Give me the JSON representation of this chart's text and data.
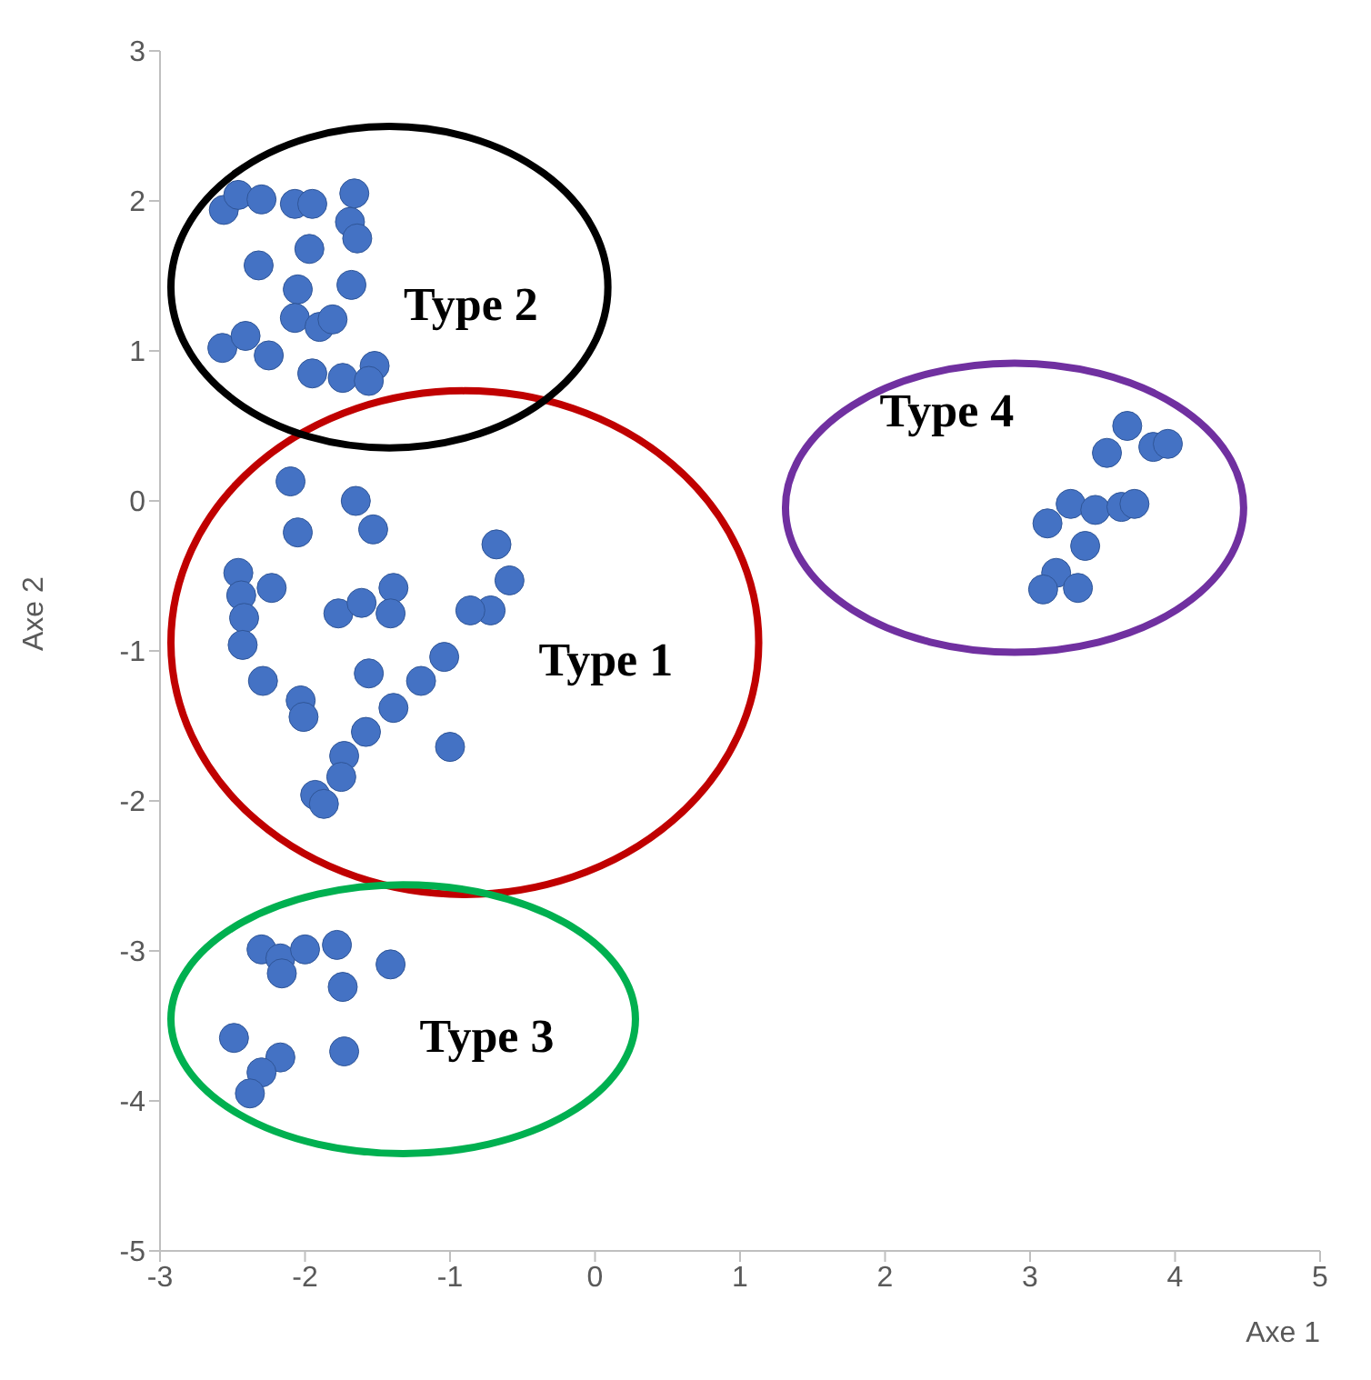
{
  "chart_data": {
    "type": "scatter",
    "xlabel": "Axe 1",
    "ylabel": "Axe 2",
    "xlim": [
      -3,
      5
    ],
    "xticks": [
      -3,
      -2,
      -1,
      0,
      1,
      2,
      3,
      4,
      5
    ],
    "ylim": [
      -5,
      3
    ],
    "yticks": [
      -5,
      -4,
      -3,
      -2,
      -1,
      0,
      1,
      2,
      3
    ],
    "grid": false,
    "legend": false,
    "marker": "circle",
    "series": [
      {
        "name": "Type 1",
        "color": "#4472c4",
        "x": [
          -2.1,
          -1.65,
          -1.53,
          -2.05,
          -0.68,
          -2.46,
          -2.23,
          -2.44,
          -2.42,
          -2.43,
          -1.77,
          -1.61,
          -1.39,
          -1.41,
          -0.59,
          -0.72,
          -0.86,
          -2.29,
          -2.03,
          -2.01,
          -1.56,
          -1.2,
          -1.04,
          -1.39,
          -1.58,
          -1.73,
          -1.75,
          -1.93,
          -1.87,
          -1.0
        ],
        "values": [
          0.13,
          0.0,
          -0.19,
          -0.21,
          -0.29,
          -0.48,
          -0.58,
          -0.63,
          -0.78,
          -0.96,
          -0.75,
          -0.68,
          -0.58,
          -0.75,
          -0.53,
          -0.73,
          -0.73,
          -1.2,
          -1.33,
          -1.44,
          -1.15,
          -1.2,
          -1.04,
          -1.38,
          -1.54,
          -1.7,
          -1.84,
          -1.96,
          -2.02,
          -1.64
        ]
      },
      {
        "name": "Type 2",
        "color": "#4472c4",
        "x": [
          -2.56,
          -2.46,
          -2.3,
          -2.07,
          -1.95,
          -1.66,
          -1.69,
          -1.64,
          -2.32,
          -1.97,
          -2.05,
          -1.68,
          -2.07,
          -1.9,
          -1.81,
          -2.57,
          -2.41,
          -2.25,
          -1.95,
          -1.74,
          -1.52,
          -1.56
        ],
        "values": [
          1.94,
          2.04,
          2.01,
          1.98,
          1.98,
          2.05,
          1.86,
          1.75,
          1.57,
          1.68,
          1.41,
          1.44,
          1.22,
          1.16,
          1.21,
          1.02,
          1.1,
          0.97,
          0.85,
          0.82,
          0.9,
          0.8
        ]
      },
      {
        "name": "Type 3",
        "color": "#4472c4",
        "x": [
          -2.3,
          -2.17,
          -2.16,
          -2.0,
          -1.78,
          -1.74,
          -1.41,
          -2.49,
          -2.17,
          -2.3,
          -2.38,
          -1.73
        ],
        "values": [
          -2.99,
          -3.05,
          -3.15,
          -2.99,
          -2.96,
          -3.24,
          -3.09,
          -3.58,
          -3.71,
          -3.81,
          -3.95,
          -3.67
        ]
      },
      {
        "name": "Type 4",
        "color": "#4472c4",
        "x": [
          3.67,
          3.53,
          3.85,
          3.95,
          3.28,
          3.45,
          3.63,
          3.72,
          3.12,
          3.38,
          3.18,
          3.09,
          3.33
        ],
        "values": [
          0.5,
          0.32,
          0.36,
          0.38,
          -0.02,
          -0.06,
          -0.04,
          -0.02,
          -0.15,
          -0.3,
          -0.48,
          -0.59,
          -0.58
        ]
      }
    ]
  }
}
